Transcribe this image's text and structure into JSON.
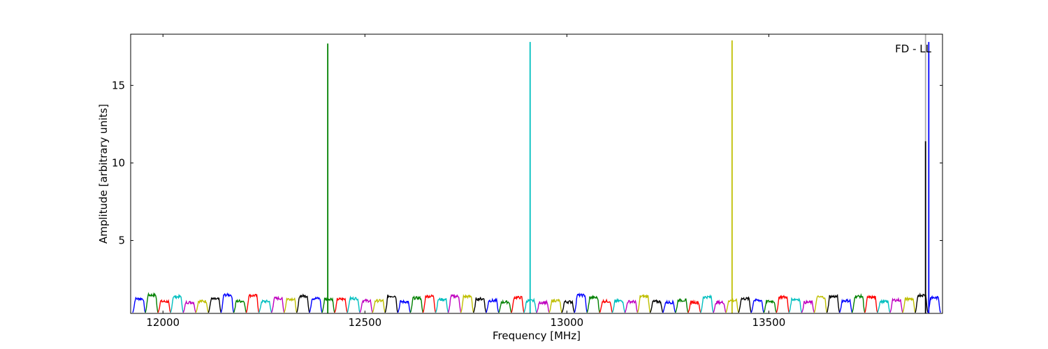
{
  "chart_data": {
    "type": "line",
    "xlabel": "Frequency [MHz]",
    "ylabel": "Amplitude [arbitrary units]",
    "annotation": "FD - LL",
    "xlim": [
      11920,
      13930
    ],
    "ylim": [
      0.3,
      18.3
    ],
    "xticks": [
      12000,
      12500,
      13000,
      13500
    ],
    "yticks": [
      5,
      10,
      15
    ],
    "grid": false,
    "legend": "none",
    "colors": [
      "#0000ff",
      "#008000",
      "#ff0000",
      "#00bfbf",
      "#bf00bf",
      "#bfbf00",
      "#000000"
    ],
    "band_start": 11925,
    "band_width": 31.25,
    "band_count": 64,
    "band_peak_min": 1.0,
    "band_peak_max": 1.5,
    "spikes": [
      {
        "x": 12408,
        "y": 17.7,
        "color": "#008000"
      },
      {
        "x": 12909,
        "y": 17.8,
        "color": "#00bfbf"
      },
      {
        "x": 13409,
        "y": 17.9,
        "color": "#bfbf00"
      },
      {
        "x": 13888,
        "y": 18.3,
        "color": "#aaaaaa"
      },
      {
        "x": 13888,
        "y": 11.4,
        "color": "#000000"
      },
      {
        "x": 13896,
        "y": 17.8,
        "color": "#0000ff"
      }
    ]
  }
}
